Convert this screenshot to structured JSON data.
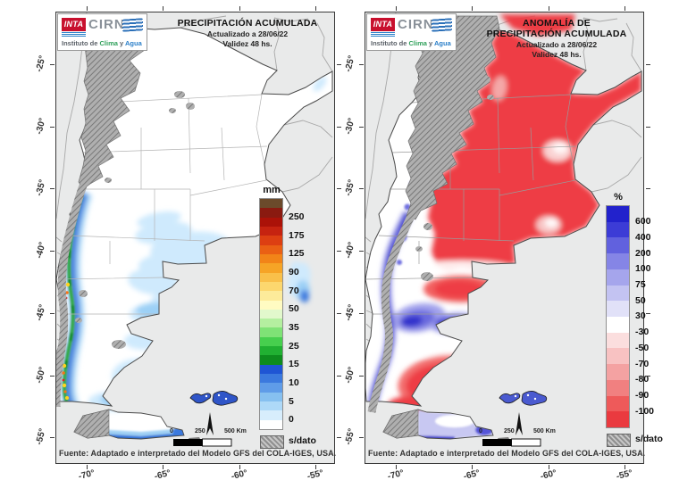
{
  "logo": {
    "inta": "INTA",
    "cirn": "CIRN",
    "institute_prefix": "Instituto de ",
    "institute_clima": "Clima",
    "institute_mid": " y ",
    "institute_agua": "Agua"
  },
  "axes": {
    "x": [
      "-70°",
      "-65°",
      "-60°",
      "-55°"
    ],
    "y": [
      "-25°",
      "-30°",
      "-35°",
      "-40°",
      "-45°",
      "-50°",
      "-55°"
    ]
  },
  "maps": [
    {
      "id": "precipitacion-acumulada",
      "title_lines": [
        "PRECIPITACIÓN ACUMULADA"
      ],
      "updated": "Actualizado a 28/06/22",
      "validity": "Validez 48 hs.",
      "source": "Fuente: Adaptado e interpretado del Modelo GFS del COLA-IGES, USA.",
      "scalebar": [
        "0",
        "250",
        "500 Km"
      ],
      "legend": {
        "title": "mm",
        "labels": [
          "250",
          "175",
          "125",
          "90",
          "70",
          "50",
          "35",
          "25",
          "15",
          "10",
          "5",
          "0"
        ],
        "colors": [
          "#6b4a2b",
          "#8a1a10",
          "#ab1208",
          "#c62310",
          "#dd3f12",
          "#ea6014",
          "#f28418",
          "#f6a426",
          "#f9c04a",
          "#fcd76e",
          "#fdeb9a",
          "#fffbc2",
          "#e2f8cc",
          "#b4efa0",
          "#7fe276",
          "#47cf4e",
          "#21b032",
          "#0e8c1e",
          "#1f55d4",
          "#3b79de",
          "#5f9ce8",
          "#86c0f0",
          "#aed9f8",
          "#d7edfc",
          "#ffffff"
        ],
        "nodata_label": "s/dato"
      }
    },
    {
      "id": "anomalia-precipitacion",
      "title_lines": [
        "ANOMALÍA DE",
        "PRECIPITACIÓN ACUMULADA"
      ],
      "updated": "Actualizado a 28/06/22",
      "validity": "Validez 48 hs.",
      "source": "Fuente: Adaptado e interpretado del Modelo GFS del COLA-IGES, USA.",
      "scalebar": [
        "0",
        "250",
        "500 Km"
      ],
      "legend": {
        "title": "%",
        "labels": [
          "600",
          "400",
          "200",
          "100",
          "75",
          "50",
          "30",
          "-30",
          "-50",
          "-70",
          "-80",
          "-90",
          "-100"
        ],
        "colors": [
          "#2222cc",
          "#3c3cd6",
          "#6161de",
          "#8585e6",
          "#a5a5ec",
          "#c3c3f2",
          "#e1e1f8",
          "#ffffff",
          "#fbdede",
          "#f8c2c2",
          "#f4a2a2",
          "#f18080",
          "#ee5a5a",
          "#ea3a3f"
        ],
        "nodata_label": "s/dato"
      }
    }
  ],
  "chart_data": [
    {
      "type": "map",
      "title": "PRECIPITACIÓN ACUMULADA",
      "units": "mm",
      "scale_values": [
        250,
        175,
        125,
        90,
        70,
        50,
        35,
        25,
        15,
        10,
        5,
        0
      ],
      "no_data": "s/dato",
      "lon_ticks": [
        -70,
        -65,
        -60,
        -55
      ],
      "lat_ticks": [
        -25,
        -30,
        -35,
        -40,
        -45,
        -50,
        -55
      ]
    },
    {
      "type": "map",
      "title": "ANOMALÍA DE PRECIPITACIÓN ACUMULADA",
      "units": "%",
      "scale_values": [
        600,
        400,
        200,
        100,
        75,
        50,
        30,
        -30,
        -50,
        -70,
        -80,
        -90,
        -100
      ],
      "no_data": "s/dato",
      "lon_ticks": [
        -70,
        -65,
        -60,
        -55
      ],
      "lat_ticks": [
        -25,
        -30,
        -35,
        -40,
        -45,
        -50,
        -55
      ]
    }
  ]
}
